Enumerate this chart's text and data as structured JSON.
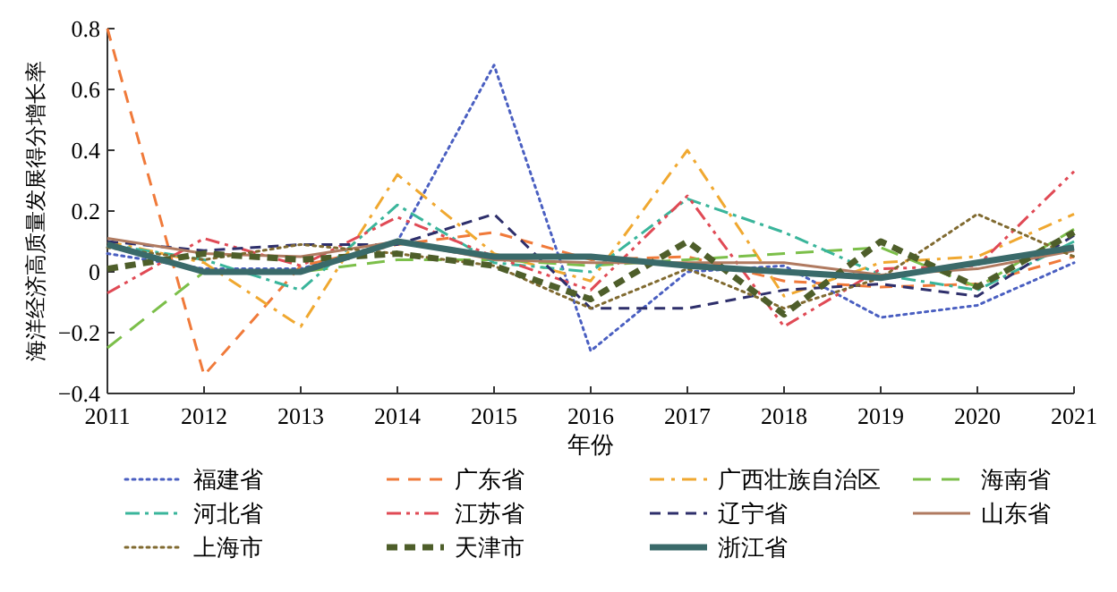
{
  "chart_data": {
    "type": "line",
    "xlabel": "年份",
    "ylabel": "海洋经济高质量发展得分增长率",
    "x": [
      2011,
      2012,
      2013,
      2014,
      2015,
      2016,
      2017,
      2018,
      2019,
      2020,
      2021
    ],
    "xlim": [
      2011,
      2021
    ],
    "xticks": [
      2011,
      2012,
      2013,
      2014,
      2015,
      2016,
      2017,
      2018,
      2019,
      2020,
      2021
    ],
    "ylim": [
      -0.4,
      0.8
    ],
    "yticks": [
      {
        "value": -0.4,
        "label": "−0.4"
      },
      {
        "value": -0.2,
        "label": "−0.2"
      },
      0,
      0.2,
      0.4,
      0.6,
      0.8
    ],
    "grid": false,
    "legend": "bottom",
    "marker": "none",
    "series": [
      {
        "name": "福建省",
        "color": "#4a5fc1",
        "line_style": "dotted",
        "values": [
          0.06,
          0.01,
          0.01,
          0.1,
          0.68,
          -0.26,
          0.0,
          0.02,
          -0.15,
          -0.11,
          0.03
        ]
      },
      {
        "name": "广东省",
        "color": "#f07a3a",
        "line_style": "dashed",
        "values": [
          0.8,
          -0.34,
          0.02,
          0.09,
          0.13,
          0.04,
          0.05,
          -0.03,
          -0.05,
          -0.04,
          0.05
        ]
      },
      {
        "name": "广西壮族自治区",
        "color": "#f0a830",
        "line_style": "dashed",
        "values": [
          0.1,
          0.03,
          -0.18,
          0.32,
          0.06,
          -0.03,
          0.4,
          -0.08,
          0.03,
          0.05,
          0.19
        ]
      },
      {
        "name": "海南省",
        "color": "#7cbf4a",
        "line_style": "dashed",
        "values": [
          -0.25,
          0.0,
          0.0,
          0.04,
          0.04,
          0.02,
          0.04,
          0.06,
          0.08,
          -0.05,
          0.14
        ]
      },
      {
        "name": "河北省",
        "color": "#3ab59b",
        "line_style": "dashed",
        "values": [
          0.09,
          0.04,
          -0.06,
          0.22,
          0.03,
          0.0,
          0.24,
          0.13,
          -0.01,
          -0.06,
          0.1
        ]
      },
      {
        "name": "江苏省",
        "color": "#e04a55",
        "line_style": "dashed",
        "values": [
          -0.07,
          0.11,
          0.02,
          0.18,
          0.05,
          -0.06,
          0.25,
          -0.18,
          0.01,
          0.02,
          0.33
        ]
      },
      {
        "name": "辽宁省",
        "color": "#2e2f6b",
        "line_style": "dashed",
        "values": [
          0.1,
          0.07,
          0.09,
          0.09,
          0.19,
          -0.12,
          -0.12,
          -0.06,
          -0.04,
          -0.08,
          0.12
        ]
      },
      {
        "name": "山东省",
        "color": "#b07a60",
        "line_style": "solid",
        "values": [
          0.11,
          0.06,
          0.05,
          0.1,
          0.04,
          0.03,
          0.03,
          0.03,
          -0.01,
          0.01,
          0.07
        ]
      },
      {
        "name": "上海市",
        "color": "#806a30",
        "line_style": "dotted",
        "values": [
          0.08,
          0.04,
          0.09,
          0.06,
          0.02,
          -0.12,
          0.01,
          -0.12,
          -0.02,
          0.19,
          0.05
        ]
      },
      {
        "name": "天津市",
        "color": "#4e5e2a",
        "line_style": "dashed",
        "values": [
          0.01,
          0.06,
          0.04,
          0.06,
          0.02,
          -0.09,
          0.1,
          -0.14,
          0.1,
          -0.05,
          0.13
        ]
      },
      {
        "name": "浙江省",
        "color": "#3a6a6a",
        "line_style": "solid",
        "values": [
          0.09,
          0.0,
          0.0,
          0.1,
          0.05,
          0.05,
          0.02,
          0.0,
          -0.02,
          0.03,
          0.08
        ]
      }
    ]
  }
}
